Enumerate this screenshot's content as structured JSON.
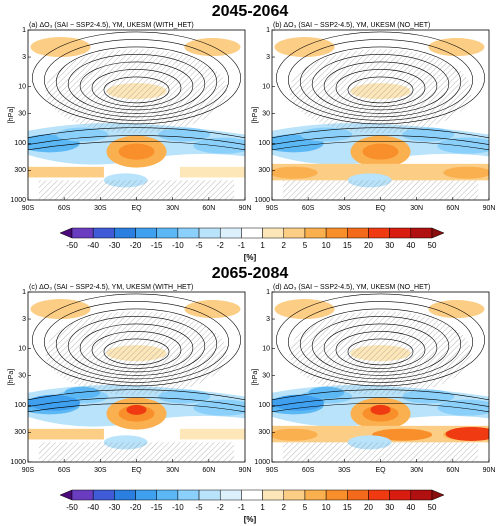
{
  "sections": [
    {
      "title": "2045-2064",
      "panels": [
        {
          "title": "(a) ΔO₃ (SAI − SSP2-4.5), YM, UKESM (WITH_HET)"
        },
        {
          "title": "(b) ΔO₃ (SAI − SSP2-4.5), YM, UKESM (NO_HET)"
        }
      ]
    },
    {
      "title": "2065-2084",
      "panels": [
        {
          "title": "(c) ΔO₃ (SAI − SSP2-4.5), YM, UKESM (WITH_HET)"
        },
        {
          "title": "(d) ΔO₃ (SAI − SSP2-4.5), YM, UKESM (NO_HET)"
        }
      ]
    }
  ],
  "axes": {
    "y_label": "[hPa]",
    "yticks": [
      1,
      3,
      10,
      30,
      100,
      300,
      1000
    ],
    "xticks": [
      "90S",
      "60S",
      "30S",
      "EQ",
      "30N",
      "60N",
      "90N"
    ]
  },
  "colorbar": {
    "unit": "[%]",
    "labels": [
      -50,
      -40,
      -30,
      -20,
      -15,
      -10,
      -5,
      -2,
      -1,
      1,
      2,
      5,
      10,
      15,
      20,
      30,
      40,
      50
    ],
    "colors": [
      "#4b0a7a",
      "#6a3dc0",
      "#3f5bd8",
      "#2b7fe0",
      "#3fa0f0",
      "#5cb8f5",
      "#8ad0fa",
      "#b8e3fb",
      "#ddf1fd",
      "#ffffff",
      "#fde7b8",
      "#fccd84",
      "#fbb04f",
      "#f88f2a",
      "#f36a1c",
      "#ef3a12",
      "#d81c10",
      "#b01010",
      "#8a0e0e"
    ]
  }
}
